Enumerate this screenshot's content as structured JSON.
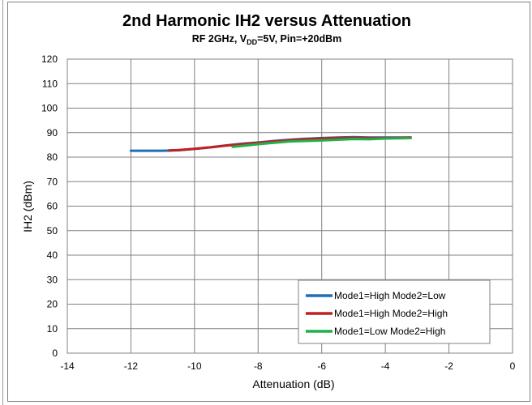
{
  "chart_data": {
    "type": "line",
    "title": "2nd Harmonic IH2 versus Attenuation",
    "subtitle": {
      "prefix": "RF 2GHz, V",
      "sub": "DD",
      "suffix": "=5V, Pin=+20dBm"
    },
    "xlabel": "Attenuation (dB)",
    "ylabel": "IH2 (dBm)",
    "xlim": [
      -14,
      0
    ],
    "ylim": [
      0,
      120
    ],
    "xticks": [
      -14,
      -12,
      -10,
      -8,
      -6,
      -4,
      -2,
      0
    ],
    "yticks": [
      0,
      10,
      20,
      30,
      40,
      50,
      60,
      70,
      80,
      90,
      100,
      110,
      120
    ],
    "grid": true,
    "legend_position": "bottom-right",
    "series": [
      {
        "name": "Mode1=High Mode2=Low",
        "color": "#1f6fb5",
        "x": [
          -12.0,
          -11.5,
          -11.0,
          -10.5,
          -10.0,
          -9.5,
          -9.0,
          -8.5,
          -8.0,
          -7.5,
          -7.0,
          -6.5,
          -6.0,
          -5.5,
          -5.0,
          -4.5,
          -4.0,
          -3.5,
          -3.2
        ],
        "y": [
          82.6,
          82.6,
          82.6,
          82.8,
          83.4,
          84.0,
          84.8,
          85.5,
          86.0,
          86.6,
          87.1,
          87.5,
          87.8,
          88.0,
          88.2,
          88.0,
          88.0,
          88.0,
          88.0
        ]
      },
      {
        "name": "Mode1=High Mode2=High",
        "color": "#c0211f",
        "x": [
          -10.8,
          -10.5,
          -10.0,
          -9.5,
          -9.0,
          -8.5,
          -8.0,
          -7.5,
          -7.0,
          -6.5,
          -6.0,
          -5.5,
          -5.0,
          -4.5,
          -4.0,
          -3.5,
          -3.2
        ],
        "y": [
          82.7,
          82.9,
          83.4,
          84.0,
          84.7,
          85.3,
          85.9,
          86.4,
          86.9,
          87.3,
          87.6,
          87.8,
          87.9,
          87.8,
          87.8,
          87.9,
          88.0
        ]
      },
      {
        "name": "Mode1=Low Mode2=High",
        "color": "#22b04a",
        "x": [
          -8.8,
          -8.5,
          -8.0,
          -7.5,
          -7.0,
          -6.5,
          -6.0,
          -5.5,
          -5.0,
          -4.5,
          -4.0,
          -3.5,
          -3.2
        ],
        "y": [
          84.2,
          84.6,
          85.3,
          85.9,
          86.4,
          86.6,
          86.8,
          87.1,
          87.4,
          87.3,
          87.6,
          87.7,
          87.8
        ]
      }
    ]
  }
}
